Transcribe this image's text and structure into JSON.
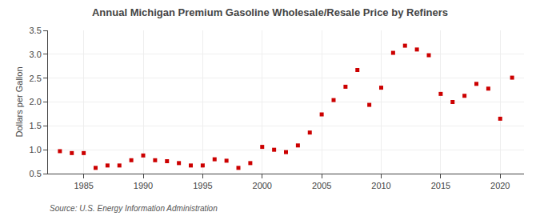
{
  "chart_data": {
    "type": "scatter",
    "title": "Annual Michigan Premium Gasoline Wholesale/Resale Price by Refiners",
    "ylabel": "Dollars per Gallon",
    "annotations": [
      "Source: U.S. Energy Information Administration"
    ],
    "x": [
      1983,
      1984,
      1985,
      1986,
      1987,
      1988,
      1989,
      1990,
      1991,
      1992,
      1993,
      1994,
      1995,
      1996,
      1997,
      1998,
      1999,
      2000,
      2001,
      2002,
      2003,
      2004,
      2005,
      2006,
      2007,
      2008,
      2009,
      2010,
      2011,
      2012,
      2013,
      2014,
      2015,
      2016,
      2017,
      2018,
      2019,
      2020,
      2021
    ],
    "values": [
      0.97,
      0.93,
      0.93,
      0.62,
      0.67,
      0.67,
      0.78,
      0.88,
      0.78,
      0.76,
      0.72,
      0.67,
      0.67,
      0.8,
      0.77,
      0.62,
      0.72,
      1.06,
      1.0,
      0.95,
      1.09,
      1.36,
      1.74,
      2.04,
      2.32,
      2.67,
      1.94,
      2.3,
      3.03,
      3.18,
      3.1,
      2.98,
      2.17,
      2.0,
      2.13,
      2.38,
      2.28,
      1.65,
      2.51
    ],
    "color": "#cc0000",
    "marker": "square",
    "xlim": [
      1982,
      2022
    ],
    "ylim": [
      0.5,
      3.5
    ],
    "xticks": [
      1985,
      1990,
      1995,
      2000,
      2005,
      2010,
      2015,
      2020
    ],
    "yticks": [
      0.5,
      {
        "value": 1.0,
        "label": "1.0"
      },
      1.5,
      {
        "value": 2.0,
        "label": "2.0"
      },
      2.5,
      {
        "value": 3.0,
        "label": "3.0"
      },
      3.5
    ],
    "grid": true
  }
}
